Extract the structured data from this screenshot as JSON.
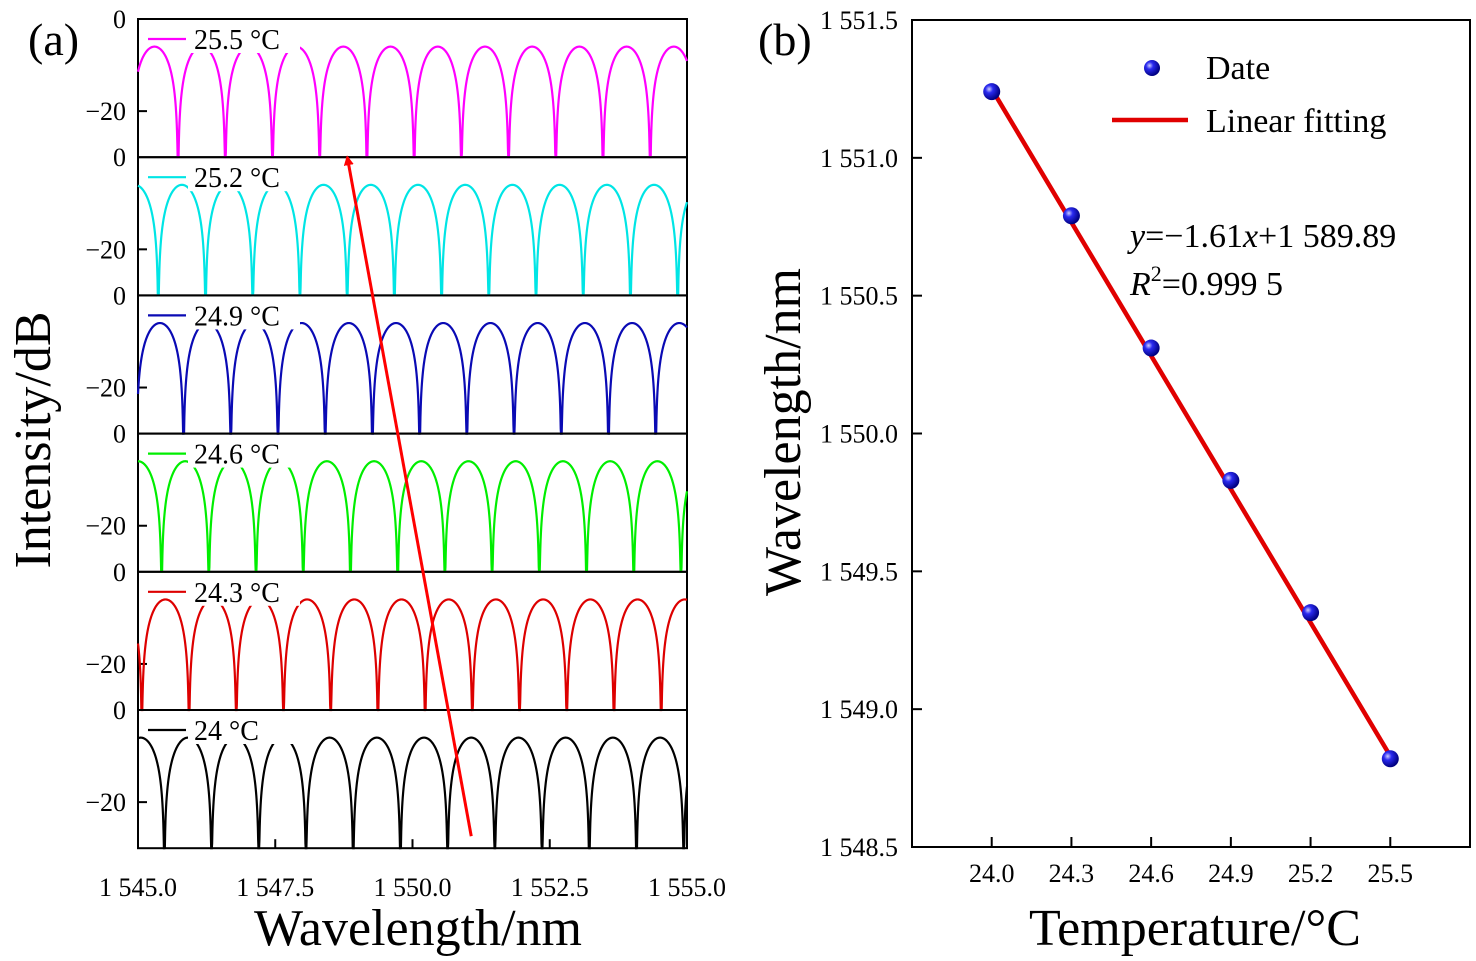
{
  "panel_a": {
    "label": "(a)",
    "xlabel": "Wavelength/nm",
    "ylabel": "Intensity/dB",
    "x_tick_labels": [
      "1 545.0",
      "1 547.5",
      "1 550.0",
      "1 552.5",
      "1 555.0"
    ],
    "y_tick_labels": [
      "0",
      "−20"
    ]
  },
  "panel_b": {
    "label": "(b)",
    "xlabel": "Temperature/°C",
    "ylabel": "Wavelength/nm",
    "x_tick_labels": [
      "24.0",
      "24.3",
      "24.6",
      "24.9",
      "25.2",
      "25.5"
    ],
    "y_tick_labels": [
      "1 548.5",
      "1 549.0",
      "1 549.5",
      "1 550.0",
      "1 550.5",
      "1 551.0",
      "1 551.5"
    ],
    "legend": {
      "data": "Date",
      "fit": "Linear fitting"
    },
    "equation": {
      "y": "y",
      "eq1": "=−1.61",
      "x": "x",
      "eq2": "+1 589.89",
      "R": "R",
      "sup": "2",
      "eq3": "=0.999 5"
    }
  },
  "chart_data": [
    {
      "type": "line",
      "title": "",
      "xlabel": "Wavelength/nm",
      "ylabel": "Intensity/dB",
      "xlim": [
        1545.0,
        1555.0
      ],
      "ylim_per_subplot": [
        -30,
        0
      ],
      "fsr_nm": 0.86,
      "min_dB": -30,
      "max_dB": -6,
      "series": [
        {
          "name": "25.5 °C",
          "color": "#ff00ff",
          "dips": [
            1545.3,
            1546.16,
            1547.02,
            1547.88,
            1548.74,
            1549.6,
            1550.46,
            1551.32,
            1552.18,
            1553.04,
            1553.9,
            1554.76
          ]
        },
        {
          "name": "25.2 °C",
          "color": "#00e5e5",
          "dips": [
            1545.8,
            1546.66,
            1547.52,
            1548.38,
            1549.24,
            1550.1,
            1550.96,
            1551.82,
            1552.68,
            1553.54,
            1554.4
          ]
        },
        {
          "name": "24.9 °C",
          "color": "#0a0ab4",
          "dips": [
            1545.4,
            1546.26,
            1547.12,
            1547.98,
            1548.84,
            1549.7,
            1550.56,
            1551.42,
            1552.28,
            1553.14,
            1554.0,
            1554.86
          ]
        },
        {
          "name": "24.6 °C",
          "color": "#00ee00",
          "dips": [
            1545.0,
            1545.86,
            1546.72,
            1547.58,
            1548.44,
            1549.3,
            1550.16,
            1551.02,
            1551.88,
            1552.74,
            1553.6,
            1554.46
          ]
        },
        {
          "name": "24.3 °C",
          "color": "#dd0000",
          "dips": [
            1545.5,
            1546.36,
            1547.22,
            1548.08,
            1548.94,
            1549.8,
            1550.66,
            1551.52,
            1552.38,
            1553.24,
            1554.1,
            1554.96
          ]
        },
        {
          "name": "24 °C",
          "color": "#000000",
          "dips": [
            1545.05,
            1545.91,
            1546.77,
            1547.63,
            1548.49,
            1549.35,
            1550.21,
            1551.07,
            1551.93,
            1552.79,
            1553.65,
            1554.51
          ]
        }
      ],
      "arrow": {
        "from": [
          1551.07,
          -30
        ],
        "to": [
          1548.74,
          -30
        ]
      }
    },
    {
      "type": "scatter",
      "title": "",
      "xlabel": "Temperature/°C",
      "ylabel": "Wavelength/nm",
      "xlim": [
        23.7,
        25.8
      ],
      "ylim": [
        1548.5,
        1551.5
      ],
      "x_ticks": [
        24.0,
        24.3,
        24.6,
        24.9,
        25.2,
        25.5
      ],
      "y_ticks": [
        1548.5,
        1549.0,
        1549.5,
        1550.0,
        1550.5,
        1551.0,
        1551.5
      ],
      "series": [
        {
          "name": "Date",
          "x": [
            24.0,
            24.3,
            24.6,
            24.9,
            25.2,
            25.5
          ],
          "y": [
            1551.24,
            1550.79,
            1550.31,
            1549.83,
            1549.35,
            1548.82
          ],
          "color": "#0000ee"
        },
        {
          "name": "Linear fitting",
          "x": [
            24.0,
            25.5
          ],
          "y": [
            1551.25,
            1548.83
          ],
          "color": "#e00000"
        }
      ],
      "legend": "top-right",
      "grid": false
    }
  ]
}
